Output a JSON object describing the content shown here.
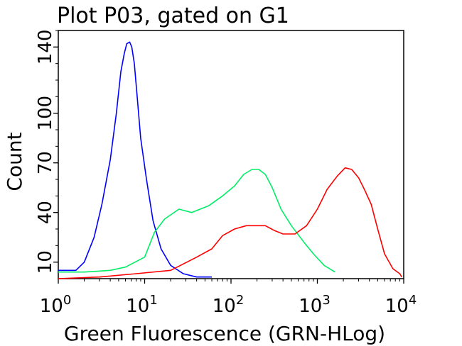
{
  "chart_data": {
    "type": "line",
    "title": "Plot P03, gated on G1",
    "xlabel": "Green Fluorescence (GRN-HLog)",
    "ylabel": "Count",
    "xscale": "log",
    "xlim": [
      1,
      10000
    ],
    "ylim": [
      0,
      150
    ],
    "grid": false,
    "x_ticks": [
      {
        "base": "10",
        "exp": "0",
        "value": 1
      },
      {
        "base": "10",
        "exp": "1",
        "value": 10
      },
      {
        "base": "10",
        "exp": "2",
        "value": 100
      },
      {
        "base": "10",
        "exp": "3",
        "value": 1000
      },
      {
        "base": "10",
        "exp": "4",
        "value": 10000
      }
    ],
    "y_ticks": [
      {
        "label": "10",
        "value": 10
      },
      {
        "label": "40",
        "value": 40
      },
      {
        "label": "70",
        "value": 70
      },
      {
        "label": "100",
        "value": 100
      },
      {
        "label": "140",
        "value": 140
      }
    ],
    "series": [
      {
        "color": "#0000ff",
        "x": [
          1,
          1.6,
          2,
          2.6,
          3.2,
          4,
          4.7,
          5.3,
          5.8,
          6.2,
          6.7,
          7.1,
          7.6,
          8.2,
          9.0,
          10.5,
          12.5,
          15.5,
          20,
          28,
          40,
          60
        ],
        "y": [
          5,
          5,
          10,
          25,
          45,
          72,
          100,
          125,
          136,
          142,
          143,
          140,
          130,
          110,
          85,
          60,
          35,
          18,
          8,
          3,
          1,
          1
        ]
      },
      {
        "color": "#00ee66",
        "x": [
          1,
          2,
          4,
          6,
          10,
          13,
          17,
          25,
          35,
          55,
          80,
          110,
          140,
          175,
          210,
          250,
          300,
          380,
          500,
          700,
          900,
          1200,
          1600
        ],
        "y": [
          4,
          4,
          5,
          7,
          13,
          28,
          36,
          42,
          40,
          44,
          50,
          56,
          63,
          66,
          66,
          63,
          55,
          42,
          32,
          22,
          15,
          8,
          4
        ]
      },
      {
        "color": "#ff0000",
        "x": [
          1,
          3,
          8,
          20,
          40,
          60,
          80,
          110,
          150,
          200,
          250,
          320,
          400,
          550,
          750,
          1000,
          1300,
          1700,
          2100,
          2500,
          3000,
          3500,
          4200,
          5000,
          6000,
          7500,
          9000,
          9500
        ],
        "y": [
          0,
          1,
          3,
          5,
          13,
          18,
          26,
          30,
          32,
          32,
          32,
          29,
          27,
          27,
          32,
          42,
          54,
          62,
          67,
          66,
          61,
          54,
          45,
          30,
          15,
          6,
          3,
          1
        ]
      }
    ]
  }
}
